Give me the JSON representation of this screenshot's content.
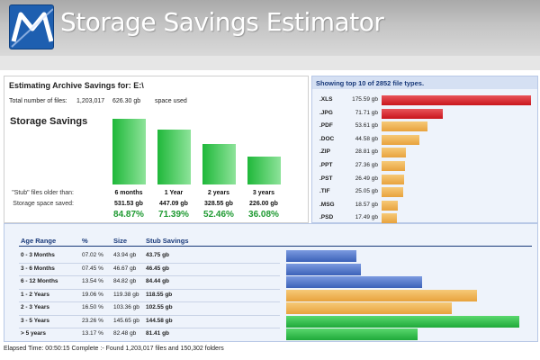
{
  "header": {
    "title": "Storage Savings Estimator",
    "logo_icon": "m-logo-icon",
    "accent": "#1e5fb0"
  },
  "summary": {
    "estimating_label": "Estimating Archive Savings for: E:\\",
    "total_files_label": "Total number of files:",
    "total_files_value": "1,203,017",
    "space_used_value": "626.30 gb",
    "space_used_label": "space used",
    "savings_title": "Storage Savings",
    "stub_label": "\"Stub\" files older than:",
    "space_saved_label": "Storage space saved:",
    "columns": [
      {
        "label": "6 months",
        "size": "531.53 gb",
        "pct": "84.87%",
        "value": 84.87
      },
      {
        "label": "1 Year",
        "size": "447.09 gb",
        "pct": "71.39%",
        "value": 71.39
      },
      {
        "label": "2 years",
        "size": "328.55 gb",
        "pct": "52.46%",
        "value": 52.46
      },
      {
        "label": "3 years",
        "size": "226.00 gb",
        "pct": "36.08%",
        "value": 36.08
      }
    ]
  },
  "file_types": {
    "heading": "Showing top 10 of 2852 file types.",
    "items": [
      {
        "ext": ".XLS",
        "size": "175.59 gb",
        "value": 175.59,
        "color": "red"
      },
      {
        "ext": ".JPG",
        "size": "71.71 gb",
        "value": 71.71,
        "color": "red"
      },
      {
        "ext": ".PDF",
        "size": "53.61 gb",
        "value": 53.61,
        "color": "orange"
      },
      {
        "ext": ".DOC",
        "size": "44.58 gb",
        "value": 44.58,
        "color": "orange"
      },
      {
        "ext": ".ZIP",
        "size": "28.81 gb",
        "value": 28.81,
        "color": "orange"
      },
      {
        "ext": ".PPT",
        "size": "27.36 gb",
        "value": 27.36,
        "color": "orange"
      },
      {
        "ext": ".PST",
        "size": "26.49 gb",
        "value": 26.49,
        "color": "orange"
      },
      {
        "ext": ".TIF",
        "size": "25.05 gb",
        "value": 25.05,
        "color": "orange"
      },
      {
        "ext": ".MSG",
        "size": "18.57 gb",
        "value": 18.57,
        "color": "orange"
      },
      {
        "ext": ".PSD",
        "size": "17.49 gb",
        "value": 17.49,
        "color": "orange"
      }
    ]
  },
  "age_table": {
    "headers": {
      "age": "Age Range",
      "pct": "%",
      "size": "Size",
      "stub": "Stub Savings"
    },
    "rows": [
      {
        "age": "0 - 3  Months",
        "pct": "07.02 %",
        "size": "43.94 gb",
        "stub": "43.75 gb",
        "value": 43.75,
        "color": "blue"
      },
      {
        "age": "3 - 6 Months",
        "pct": "07.45 %",
        "size": "46.67 gb",
        "stub": "46.45 gb",
        "value": 46.45,
        "color": "blue"
      },
      {
        "age": "6 - 12 Months",
        "pct": "13.54 %",
        "size": "84.82 gb",
        "stub": "84.44 gb",
        "value": 84.44,
        "color": "blue"
      },
      {
        "age": "1 - 2 Years",
        "pct": "19.06 %",
        "size": "119.38 gb",
        "stub": "118.55 gb",
        "value": 118.55,
        "color": "orange"
      },
      {
        "age": "2 - 3 Years",
        "pct": "16.50 %",
        "size": "103.36 gb",
        "stub": "102.55 gb",
        "value": 102.55,
        "color": "orange"
      },
      {
        "age": "3 - 5 Years",
        "pct": "23.26 %",
        "size": "145.65 gb",
        "stub": "144.58 gb",
        "value": 144.58,
        "color": "green"
      },
      {
        "age": "> 5 years",
        "pct": "13.17 %",
        "size": "82.48 gb",
        "stub": "81.41 gb",
        "value": 81.41,
        "color": "green"
      }
    ]
  },
  "status": {
    "text": "Elapsed Time: 00:50:15   Complete :- Found 1,203,017 files and 150,302 folders"
  },
  "colors": {
    "green": "#2bbd45",
    "red": "#d8262c",
    "orange": "#f0b24f",
    "blue": "#4c74c9",
    "pct_green": "#1f9a32"
  }
}
